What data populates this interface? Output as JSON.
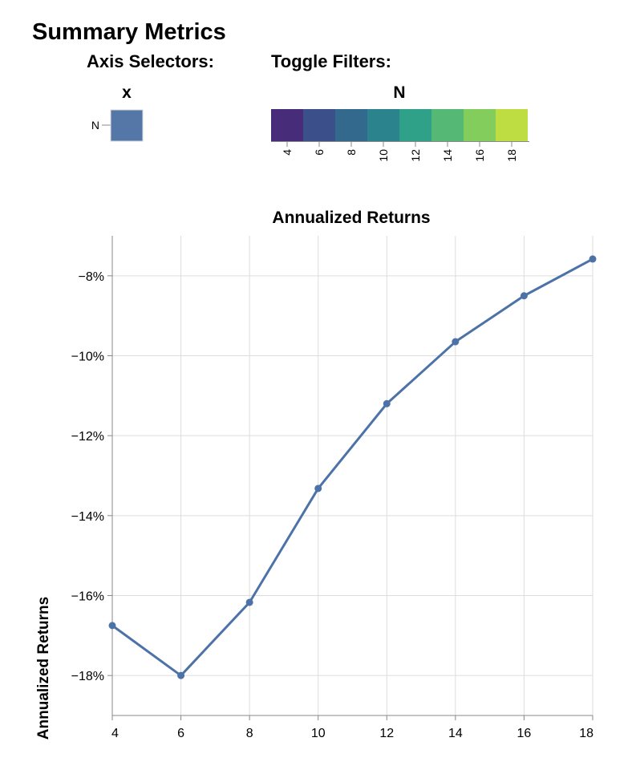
{
  "page": {
    "title": "Summary Metrics"
  },
  "axis_selectors": {
    "label": "Axis Selectors:",
    "title": "x",
    "options": [
      "N"
    ],
    "swatch_color": "#5577a8"
  },
  "toggle_filters": {
    "label": "Toggle Filters:",
    "title": "N",
    "values": [
      4,
      6,
      8,
      10,
      12,
      14,
      16,
      18
    ],
    "colors": [
      "#472c7a",
      "#3b4f8a",
      "#32698d",
      "#2b838e",
      "#2fa188",
      "#55b874",
      "#83cd5d",
      "#bddd43"
    ]
  },
  "chart_data": {
    "type": "line",
    "title": "Annualized Returns",
    "xlabel": "",
    "ylabel": "Annualized Returns",
    "x": [
      4,
      6,
      8,
      10,
      12,
      14,
      16,
      18
    ],
    "series": [
      {
        "values": [
          -16.75,
          -18.0,
          -16.17,
          -13.32,
          -11.2,
          -9.65,
          -8.5,
          -7.58
        ]
      }
    ],
    "xlim": [
      4,
      18
    ],
    "ylim": [
      -19,
      -7
    ],
    "x_ticks": [
      "4",
      "6",
      "8",
      "10",
      "12",
      "14",
      "16",
      "18"
    ],
    "y_tick_values": [
      -18,
      -16,
      -14,
      -12,
      -10,
      -8
    ],
    "y_ticks": [
      "−18%",
      "−16%",
      "−14%",
      "−12%",
      "−10%",
      "−8%"
    ],
    "grid": true,
    "line_color": "#4c72a8"
  }
}
